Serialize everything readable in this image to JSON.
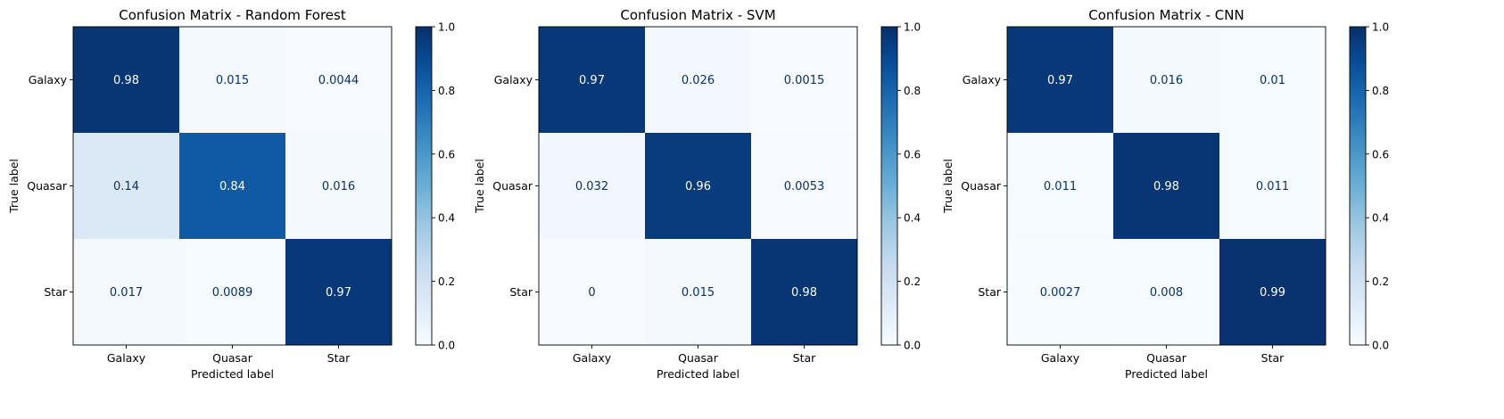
{
  "chart_data": [
    {
      "type": "heatmap",
      "title": "Confusion Matrix - Random Forest",
      "xlabel": "Predicted label",
      "ylabel": "True label",
      "x_categories": [
        "Galaxy",
        "Quasar",
        "Star"
      ],
      "y_categories": [
        "Galaxy",
        "Quasar",
        "Star"
      ],
      "values": [
        [
          0.98,
          0.015,
          0.0044
        ],
        [
          0.14,
          0.84,
          0.016
        ],
        [
          0.017,
          0.0089,
          0.97
        ]
      ],
      "value_labels": [
        [
          "0.98",
          "0.015",
          "0.0044"
        ],
        [
          "0.14",
          "0.84",
          "0.016"
        ],
        [
          "0.017",
          "0.0089",
          "0.97"
        ]
      ],
      "colorbar": {
        "range": [
          0,
          1
        ],
        "ticks": [
          "0.0",
          "0.2",
          "0.4",
          "0.6",
          "0.8",
          "1.0"
        ]
      },
      "colormap": "Blues"
    },
    {
      "type": "heatmap",
      "title": "Confusion Matrix - SVM",
      "xlabel": "Predicted label",
      "ylabel": "True label",
      "x_categories": [
        "Galaxy",
        "Quasar",
        "Star"
      ],
      "y_categories": [
        "Galaxy",
        "Quasar",
        "Star"
      ],
      "values": [
        [
          0.97,
          0.026,
          0.0015
        ],
        [
          0.032,
          0.96,
          0.0053
        ],
        [
          0,
          0.015,
          0.98
        ]
      ],
      "value_labels": [
        [
          "0.97",
          "0.026",
          "0.0015"
        ],
        [
          "0.032",
          "0.96",
          "0.0053"
        ],
        [
          "0",
          "0.015",
          "0.98"
        ]
      ],
      "colorbar": {
        "range": [
          0,
          1
        ],
        "ticks": [
          "0.0",
          "0.2",
          "0.4",
          "0.6",
          "0.8",
          "1.0"
        ]
      },
      "colormap": "Blues"
    },
    {
      "type": "heatmap",
      "title": "Confusion Matrix - CNN",
      "xlabel": "Predicted label",
      "ylabel": "True label",
      "x_categories": [
        "Galaxy",
        "Quasar",
        "Star"
      ],
      "y_categories": [
        "Galaxy",
        "Quasar",
        "Star"
      ],
      "values": [
        [
          0.97,
          0.016,
          0.01
        ],
        [
          0.011,
          0.98,
          0.011
        ],
        [
          0.0027,
          0.008,
          0.99
        ]
      ],
      "value_labels": [
        [
          "0.97",
          "0.016",
          "0.01"
        ],
        [
          "0.011",
          "0.98",
          "0.011"
        ],
        [
          "0.0027",
          "0.008",
          "0.99"
        ]
      ],
      "colorbar": {
        "range": [
          0,
          1
        ],
        "ticks": [
          "0.0",
          "0.2",
          "0.4",
          "0.6",
          "0.8",
          "1.0"
        ]
      },
      "colormap": "Blues"
    }
  ]
}
